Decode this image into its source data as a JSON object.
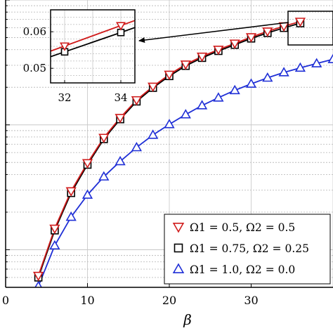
{
  "chart_data": {
    "type": "line",
    "xlabel": "β",
    "ylabel": "",
    "yscale": "log",
    "grid": true,
    "legend_position": "bottom-right",
    "xlim": [
      0,
      40
    ],
    "ylim": [
      0.0005,
      0.1
    ],
    "xticks": [
      0,
      10,
      20,
      30
    ],
    "series": [
      {
        "name": "Ω1 = 0.5, Ω2 = 0.5",
        "marker": "triangle-down",
        "color": "#d01c1c",
        "x": [
          4,
          6,
          8,
          10,
          12,
          14,
          16,
          18,
          20,
          22,
          24,
          26,
          28,
          30,
          32,
          34,
          36
        ],
        "y": [
          0.00062,
          0.00148,
          0.00295,
          0.00495,
          0.0079,
          0.0114,
          0.0158,
          0.0203,
          0.0253,
          0.0305,
          0.0353,
          0.0401,
          0.0449,
          0.0505,
          0.0561,
          0.0617,
          0.0672
        ]
      },
      {
        "name": "Ω1 = 0.75, Ω2 = 0.25",
        "marker": "square",
        "color": "#000000",
        "x": [
          4,
          6,
          8,
          10,
          12,
          14,
          16,
          18,
          20,
          22,
          24,
          26,
          28,
          30,
          32,
          34,
          36
        ],
        "y": [
          0.0006,
          0.00143,
          0.00285,
          0.0048,
          0.0077,
          0.0111,
          0.0154,
          0.0198,
          0.0246,
          0.0297,
          0.0344,
          0.0391,
          0.0438,
          0.0492,
          0.0545,
          0.0598,
          0.0652
        ]
      },
      {
        "name": "Ω1 = 1.0, Ω2 = 0.0",
        "marker": "triangle-up",
        "color": "#1f2fd6",
        "x": [
          4,
          6,
          8,
          10,
          12,
          14,
          16,
          18,
          20,
          22,
          24,
          26,
          28,
          30,
          32,
          34,
          36,
          38,
          40
        ],
        "y": [
          0.00051,
          0.00108,
          0.00183,
          0.00275,
          0.00385,
          0.0051,
          0.0066,
          0.0083,
          0.0101,
          0.0121,
          0.0143,
          0.0165,
          0.0189,
          0.0213,
          0.0238,
          0.0263,
          0.0286,
          0.031,
          0.0335
        ]
      }
    ],
    "inset": {
      "xlim": [
        31.5,
        34.5
      ],
      "ylim": [
        0.046,
        0.066
      ],
      "xticks": [
        32,
        34
      ],
      "yticks": [
        0.05,
        0.06
      ],
      "ytick_labels": [
        "0.05",
        "0.06"
      ],
      "xtick_labels": [
        "32",
        "34"
      ]
    },
    "tick_labels": {
      "x": [
        "0",
        "10",
        "20",
        "30"
      ]
    }
  }
}
